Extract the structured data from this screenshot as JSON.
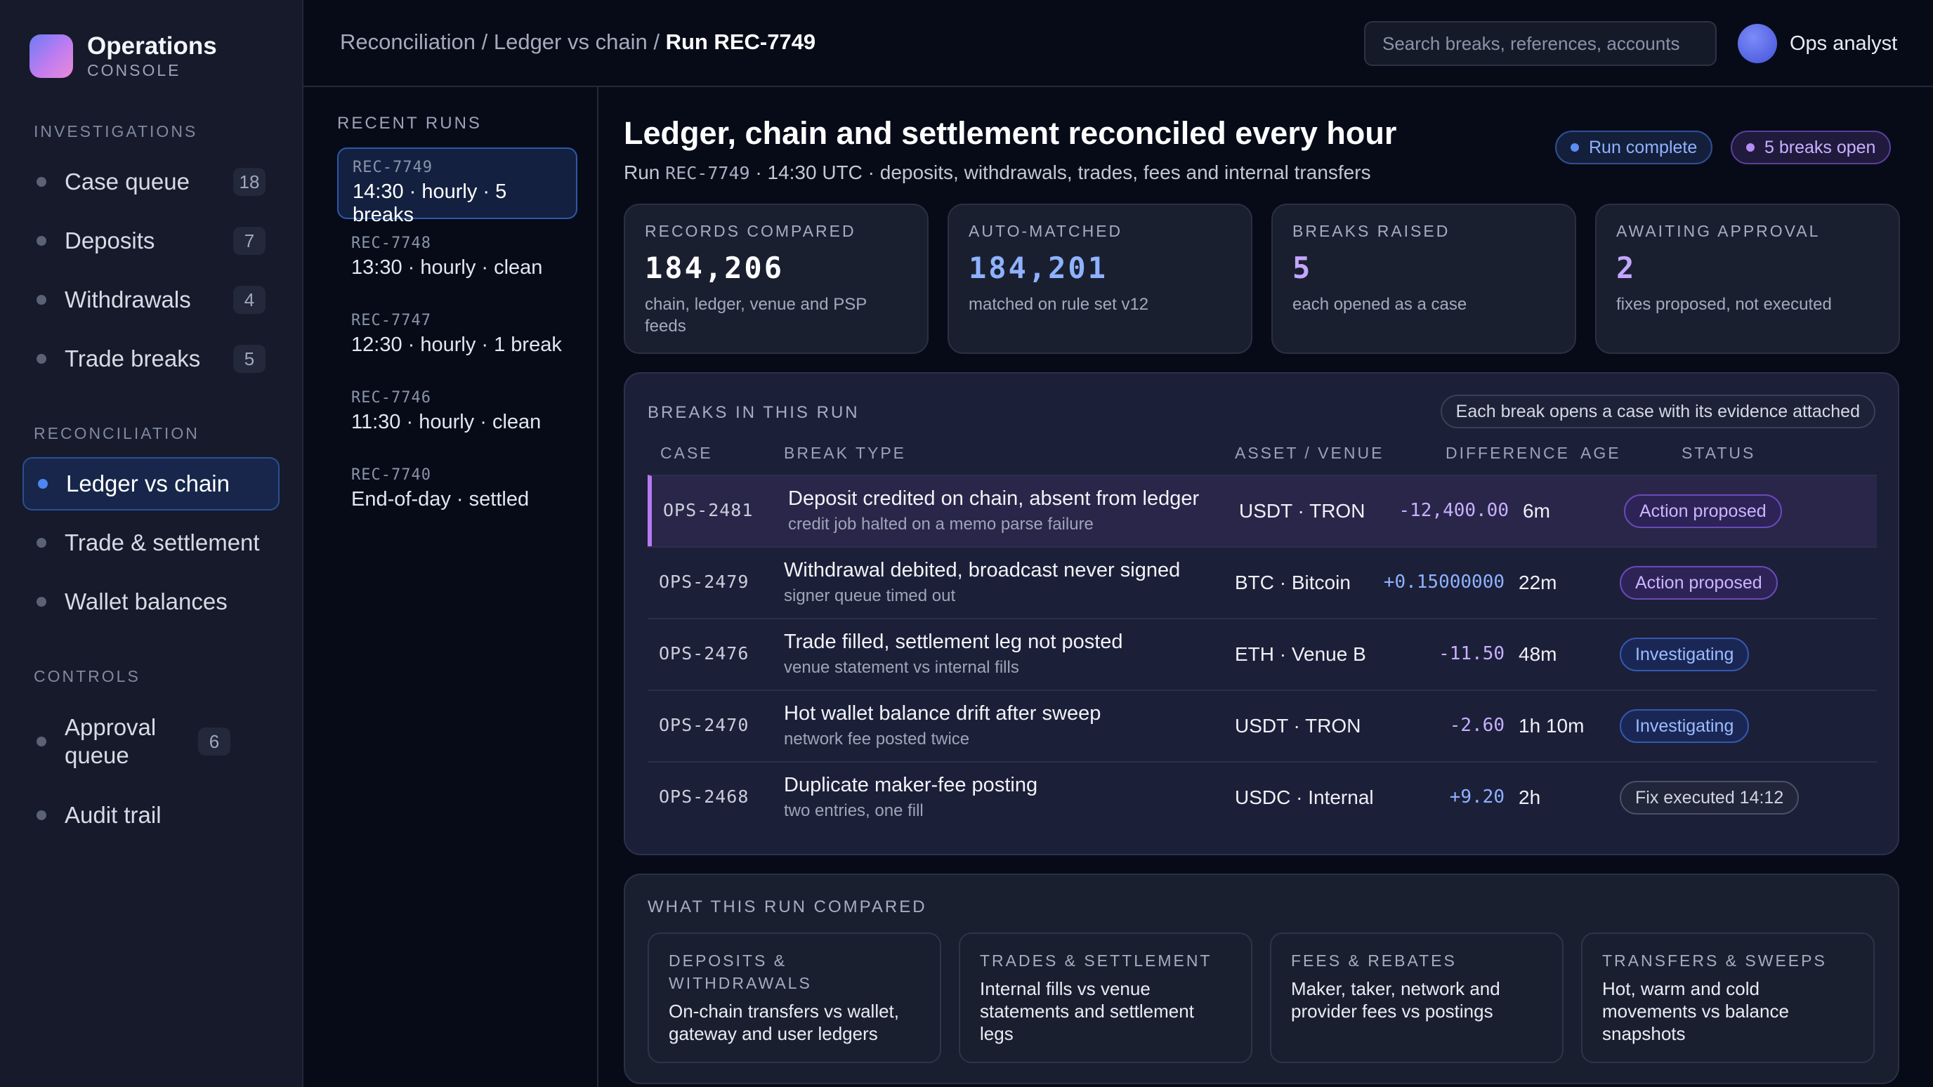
{
  "brand": {
    "name": "Operations",
    "sub": "CONSOLE"
  },
  "sidebar": {
    "sections": [
      {
        "title": "INVESTIGATIONS"
      },
      {
        "title": "RECONCILIATION"
      },
      {
        "title": "CONTROLS"
      }
    ],
    "items": [
      {
        "label": "Case queue",
        "count": "18"
      },
      {
        "label": "Deposits",
        "count": "7"
      },
      {
        "label": "Withdrawals",
        "count": "4"
      },
      {
        "label": "Trade breaks",
        "count": "5"
      },
      {
        "label": "Ledger vs chain"
      },
      {
        "label": "Trade & settlement"
      },
      {
        "label": "Wallet balances"
      },
      {
        "label": "Approval queue",
        "count": "6"
      },
      {
        "label": "Audit trail"
      }
    ]
  },
  "topbar": {
    "breadcrumb": {
      "part1": "Reconciliation",
      "sep": " / ",
      "part2": "Ledger vs chain",
      "current": "Run REC-7749"
    },
    "search_placeholder": "Search breaks, references, accounts",
    "user": "Ops analyst"
  },
  "runs": {
    "title": "RECENT RUNS",
    "items": [
      {
        "id": "REC-7749",
        "desc": "14:30 · hourly · 5 breaks"
      },
      {
        "id": "REC-7748",
        "desc": "13:30 · hourly · clean"
      },
      {
        "id": "REC-7747",
        "desc": "12:30 · hourly · 1 break"
      },
      {
        "id": "REC-7746",
        "desc": "11:30 · hourly · clean"
      },
      {
        "id": "REC-7740",
        "desc": "End-of-day · settled"
      }
    ]
  },
  "main": {
    "title": "Ledger, chain and settlement reconciled every hour",
    "sub": {
      "prefix": "Run ",
      "run_id": "REC-7749",
      "dot": " · ",
      "time": "14:30 UTC",
      "scope": "deposits, withdrawals, trades, fees and internal transfers"
    },
    "badges": {
      "complete": "Run complete",
      "breaks": "5 breaks open"
    },
    "kpis": [
      {
        "label": "RECORDS COMPARED",
        "value": "184,206",
        "note": "chain, ledger, venue and PSP feeds"
      },
      {
        "label": "AUTO-MATCHED",
        "value": "184,201",
        "note": "matched on rule set v12"
      },
      {
        "label": "BREAKS RAISED",
        "value": "5",
        "note": "each opened as a case"
      },
      {
        "label": "AWAITING APPROVAL",
        "value": "2",
        "note": "fixes proposed, not executed"
      }
    ],
    "breaks": {
      "title": "BREAKS IN THIS RUN",
      "note": "Each break opens a case with its evidence attached",
      "headers": {
        "case": "CASE",
        "type": "BREAK TYPE",
        "asset": "ASSET / VENUE",
        "diff": "DIFFERENCE",
        "age": "AGE",
        "status": "STATUS"
      },
      "rows": [
        {
          "case": "OPS-2481",
          "title": "Deposit credited on chain, absent from ledger",
          "sub": "credit job halted on a memo parse failure",
          "asset": "USDT · TRON",
          "diff": "-12,400.00",
          "age": "6m",
          "status": "Action proposed"
        },
        {
          "case": "OPS-2479",
          "title": "Withdrawal debited, broadcast never signed",
          "sub": "signer queue timed out",
          "asset": "BTC · Bitcoin",
          "diff": "+0.15000000",
          "age": "22m",
          "status": "Action proposed"
        },
        {
          "case": "OPS-2476",
          "title": "Trade filled, settlement leg not posted",
          "sub": "venue statement vs internal fills",
          "asset": "ETH · Venue B",
          "diff": "-11.50",
          "age": "48m",
          "status": "Investigating"
        },
        {
          "case": "OPS-2470",
          "title": "Hot wallet balance drift after sweep",
          "sub": "network fee posted twice",
          "asset": "USDT · TRON",
          "diff": "-2.60",
          "age": "1h 10m",
          "status": "Investigating"
        },
        {
          "case": "OPS-2468",
          "title": "Duplicate maker-fee posting",
          "sub": "two entries, one fill",
          "asset": "USDC · Internal",
          "diff": "+9.20",
          "age": "2h",
          "status": "Fix executed 14:12"
        }
      ]
    },
    "compared": {
      "title": "WHAT THIS RUN COMPARED",
      "cards": [
        {
          "label": "DEPOSITS & WITHDRAWALS",
          "text": "On-chain transfers vs wallet, gateway and user ledgers"
        },
        {
          "label": "TRADES & SETTLEMENT",
          "text": "Internal fills vs venue statements and settlement legs"
        },
        {
          "label": "FEES & REBATES",
          "text": "Maker, taker, network and provider fees vs postings"
        },
        {
          "label": "TRANSFERS & SWEEPS",
          "text": "Hot, warm and cold movements vs balance snapshots"
        }
      ]
    }
  },
  "colors": {
    "accent_blue": "#5c8df5",
    "accent_purple": "#b67af0",
    "background": "#070b18",
    "panel": "#1a1f30"
  }
}
